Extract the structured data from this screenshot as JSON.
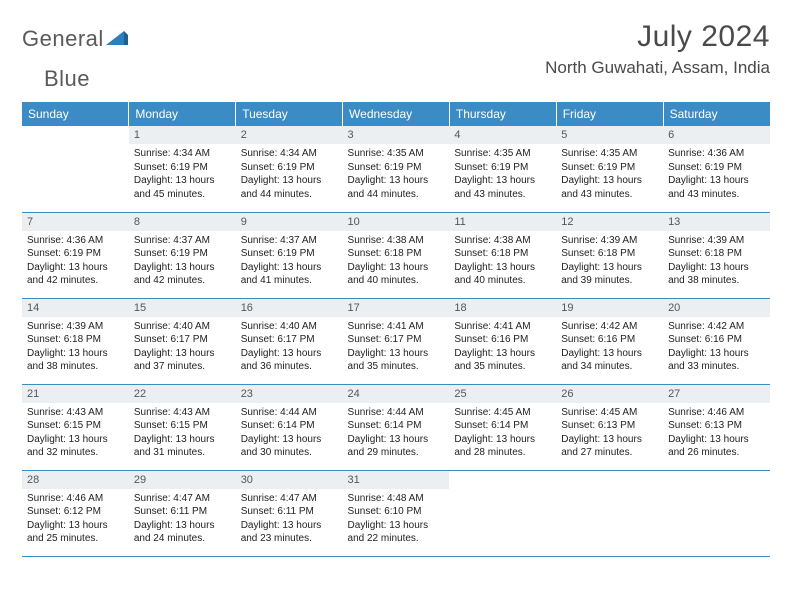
{
  "logo": {
    "word1": "General",
    "word2": "Blue",
    "icon_color": "#2c7fb8"
  },
  "header": {
    "month_title": "July 2024",
    "location": "North Guwahati, Assam, India"
  },
  "colors": {
    "header_bg": "#3b8bc4",
    "header_text": "#ffffff",
    "daynum_bg": "#eceff1",
    "border": "#3b8bc4",
    "text": "#333333",
    "logo_gray": "#5a5a5a"
  },
  "day_names": [
    "Sunday",
    "Monday",
    "Tuesday",
    "Wednesday",
    "Thursday",
    "Friday",
    "Saturday"
  ],
  "weeks": [
    [
      {
        "day": "",
        "empty": true
      },
      {
        "day": "1",
        "sunrise": "Sunrise: 4:34 AM",
        "sunset": "Sunset: 6:19 PM",
        "dl1": "Daylight: 13 hours",
        "dl2": "and 45 minutes."
      },
      {
        "day": "2",
        "sunrise": "Sunrise: 4:34 AM",
        "sunset": "Sunset: 6:19 PM",
        "dl1": "Daylight: 13 hours",
        "dl2": "and 44 minutes."
      },
      {
        "day": "3",
        "sunrise": "Sunrise: 4:35 AM",
        "sunset": "Sunset: 6:19 PM",
        "dl1": "Daylight: 13 hours",
        "dl2": "and 44 minutes."
      },
      {
        "day": "4",
        "sunrise": "Sunrise: 4:35 AM",
        "sunset": "Sunset: 6:19 PM",
        "dl1": "Daylight: 13 hours",
        "dl2": "and 43 minutes."
      },
      {
        "day": "5",
        "sunrise": "Sunrise: 4:35 AM",
        "sunset": "Sunset: 6:19 PM",
        "dl1": "Daylight: 13 hours",
        "dl2": "and 43 minutes."
      },
      {
        "day": "6",
        "sunrise": "Sunrise: 4:36 AM",
        "sunset": "Sunset: 6:19 PM",
        "dl1": "Daylight: 13 hours",
        "dl2": "and 43 minutes."
      }
    ],
    [
      {
        "day": "7",
        "sunrise": "Sunrise: 4:36 AM",
        "sunset": "Sunset: 6:19 PM",
        "dl1": "Daylight: 13 hours",
        "dl2": "and 42 minutes."
      },
      {
        "day": "8",
        "sunrise": "Sunrise: 4:37 AM",
        "sunset": "Sunset: 6:19 PM",
        "dl1": "Daylight: 13 hours",
        "dl2": "and 42 minutes."
      },
      {
        "day": "9",
        "sunrise": "Sunrise: 4:37 AM",
        "sunset": "Sunset: 6:19 PM",
        "dl1": "Daylight: 13 hours",
        "dl2": "and 41 minutes."
      },
      {
        "day": "10",
        "sunrise": "Sunrise: 4:38 AM",
        "sunset": "Sunset: 6:18 PM",
        "dl1": "Daylight: 13 hours",
        "dl2": "and 40 minutes."
      },
      {
        "day": "11",
        "sunrise": "Sunrise: 4:38 AM",
        "sunset": "Sunset: 6:18 PM",
        "dl1": "Daylight: 13 hours",
        "dl2": "and 40 minutes."
      },
      {
        "day": "12",
        "sunrise": "Sunrise: 4:39 AM",
        "sunset": "Sunset: 6:18 PM",
        "dl1": "Daylight: 13 hours",
        "dl2": "and 39 minutes."
      },
      {
        "day": "13",
        "sunrise": "Sunrise: 4:39 AM",
        "sunset": "Sunset: 6:18 PM",
        "dl1": "Daylight: 13 hours",
        "dl2": "and 38 minutes."
      }
    ],
    [
      {
        "day": "14",
        "sunrise": "Sunrise: 4:39 AM",
        "sunset": "Sunset: 6:18 PM",
        "dl1": "Daylight: 13 hours",
        "dl2": "and 38 minutes."
      },
      {
        "day": "15",
        "sunrise": "Sunrise: 4:40 AM",
        "sunset": "Sunset: 6:17 PM",
        "dl1": "Daylight: 13 hours",
        "dl2": "and 37 minutes."
      },
      {
        "day": "16",
        "sunrise": "Sunrise: 4:40 AM",
        "sunset": "Sunset: 6:17 PM",
        "dl1": "Daylight: 13 hours",
        "dl2": "and 36 minutes."
      },
      {
        "day": "17",
        "sunrise": "Sunrise: 4:41 AM",
        "sunset": "Sunset: 6:17 PM",
        "dl1": "Daylight: 13 hours",
        "dl2": "and 35 minutes."
      },
      {
        "day": "18",
        "sunrise": "Sunrise: 4:41 AM",
        "sunset": "Sunset: 6:16 PM",
        "dl1": "Daylight: 13 hours",
        "dl2": "and 35 minutes."
      },
      {
        "day": "19",
        "sunrise": "Sunrise: 4:42 AM",
        "sunset": "Sunset: 6:16 PM",
        "dl1": "Daylight: 13 hours",
        "dl2": "and 34 minutes."
      },
      {
        "day": "20",
        "sunrise": "Sunrise: 4:42 AM",
        "sunset": "Sunset: 6:16 PM",
        "dl1": "Daylight: 13 hours",
        "dl2": "and 33 minutes."
      }
    ],
    [
      {
        "day": "21",
        "sunrise": "Sunrise: 4:43 AM",
        "sunset": "Sunset: 6:15 PM",
        "dl1": "Daylight: 13 hours",
        "dl2": "and 32 minutes."
      },
      {
        "day": "22",
        "sunrise": "Sunrise: 4:43 AM",
        "sunset": "Sunset: 6:15 PM",
        "dl1": "Daylight: 13 hours",
        "dl2": "and 31 minutes."
      },
      {
        "day": "23",
        "sunrise": "Sunrise: 4:44 AM",
        "sunset": "Sunset: 6:14 PM",
        "dl1": "Daylight: 13 hours",
        "dl2": "and 30 minutes."
      },
      {
        "day": "24",
        "sunrise": "Sunrise: 4:44 AM",
        "sunset": "Sunset: 6:14 PM",
        "dl1": "Daylight: 13 hours",
        "dl2": "and 29 minutes."
      },
      {
        "day": "25",
        "sunrise": "Sunrise: 4:45 AM",
        "sunset": "Sunset: 6:14 PM",
        "dl1": "Daylight: 13 hours",
        "dl2": "and 28 minutes."
      },
      {
        "day": "26",
        "sunrise": "Sunrise: 4:45 AM",
        "sunset": "Sunset: 6:13 PM",
        "dl1": "Daylight: 13 hours",
        "dl2": "and 27 minutes."
      },
      {
        "day": "27",
        "sunrise": "Sunrise: 4:46 AM",
        "sunset": "Sunset: 6:13 PM",
        "dl1": "Daylight: 13 hours",
        "dl2": "and 26 minutes."
      }
    ],
    [
      {
        "day": "28",
        "sunrise": "Sunrise: 4:46 AM",
        "sunset": "Sunset: 6:12 PM",
        "dl1": "Daylight: 13 hours",
        "dl2": "and 25 minutes."
      },
      {
        "day": "29",
        "sunrise": "Sunrise: 4:47 AM",
        "sunset": "Sunset: 6:11 PM",
        "dl1": "Daylight: 13 hours",
        "dl2": "and 24 minutes."
      },
      {
        "day": "30",
        "sunrise": "Sunrise: 4:47 AM",
        "sunset": "Sunset: 6:11 PM",
        "dl1": "Daylight: 13 hours",
        "dl2": "and 23 minutes."
      },
      {
        "day": "31",
        "sunrise": "Sunrise: 4:48 AM",
        "sunset": "Sunset: 6:10 PM",
        "dl1": "Daylight: 13 hours",
        "dl2": "and 22 minutes."
      },
      {
        "day": "",
        "empty": true
      },
      {
        "day": "",
        "empty": true
      },
      {
        "day": "",
        "empty": true
      }
    ]
  ]
}
